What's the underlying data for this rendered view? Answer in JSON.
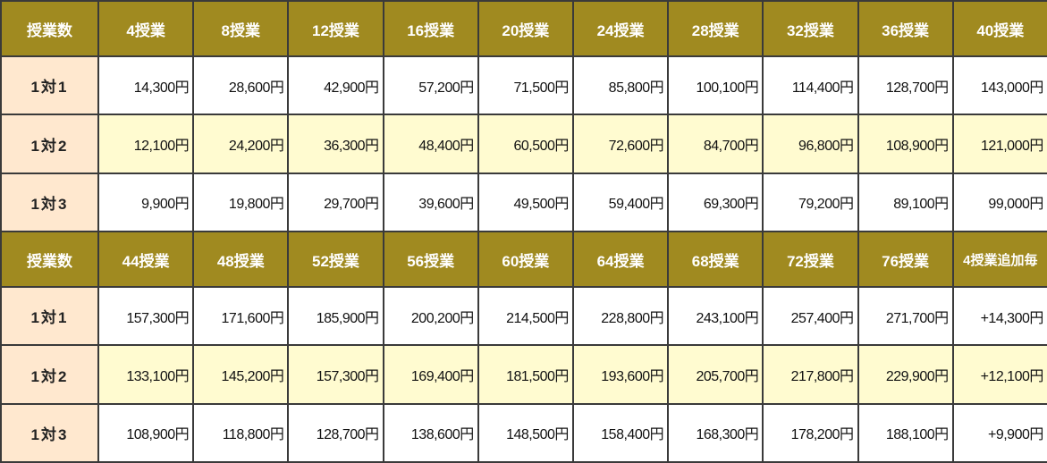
{
  "blocks": [
    {
      "header_label": "授業数",
      "columns": [
        "4授業",
        "8授業",
        "12授業",
        "16授業",
        "20授業",
        "24授業",
        "28授業",
        "32授業",
        "36授業",
        "40授業"
      ],
      "rows": [
        {
          "label": "1対1",
          "values": [
            "14,300円",
            "28,600円",
            "42,900円",
            "57,200円",
            "71,500円",
            "85,800円",
            "100,100円",
            "114,400円",
            "128,700円",
            "143,000円"
          ]
        },
        {
          "label": "1対2",
          "values": [
            "12,100円",
            "24,200円",
            "36,300円",
            "48,400円",
            "60,500円",
            "72,600円",
            "84,700円",
            "96,800円",
            "108,900円",
            "121,000円"
          ]
        },
        {
          "label": "1対3",
          "values": [
            "9,900円",
            "19,800円",
            "29,700円",
            "39,600円",
            "49,500円",
            "59,400円",
            "69,300円",
            "79,200円",
            "89,100円",
            "99,000円"
          ]
        }
      ]
    },
    {
      "header_label": "授業数",
      "columns": [
        "44授業",
        "48授業",
        "52授業",
        "56授業",
        "60授業",
        "64授業",
        "68授業",
        "72授業",
        "76授業",
        "4授業追加毎"
      ],
      "rows": [
        {
          "label": "1対1",
          "values": [
            "157,300円",
            "171,600円",
            "185,900円",
            "200,200円",
            "214,500円",
            "228,800円",
            "243,100円",
            "257,400円",
            "271,700円",
            "+14,300円"
          ]
        },
        {
          "label": "1対2",
          "values": [
            "133,100円",
            "145,200円",
            "157,300円",
            "169,400円",
            "181,500円",
            "193,600円",
            "205,700円",
            "217,800円",
            "229,900円",
            "+12,100円"
          ]
        },
        {
          "label": "1対3",
          "values": [
            "108,900円",
            "118,800円",
            "128,700円",
            "138,600円",
            "148,500円",
            "158,400円",
            "168,300円",
            "178,200円",
            "188,100円",
            "+9,900円"
          ]
        }
      ]
    }
  ],
  "colors": {
    "header_bg": "#a08a20",
    "label_bg": "#ffe8cf",
    "yellow_row_bg": "#fffbd0",
    "border": "#3a3a3a"
  }
}
